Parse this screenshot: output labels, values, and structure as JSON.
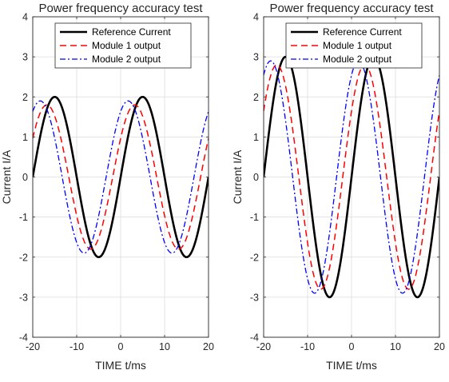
{
  "chart_data": [
    {
      "type": "line",
      "title": "Power frequency accuracy test",
      "xlabel": "TIME t/ms",
      "ylabel": "Current I/A",
      "xlim": [
        -20,
        20
      ],
      "ylim": [
        -4,
        4
      ],
      "xticks": [
        "-20",
        "-10",
        "0",
        "10",
        "20"
      ],
      "yticks": [
        "-4",
        "-3",
        "-2",
        "-1",
        "0",
        "1",
        "2",
        "3",
        "4"
      ],
      "grid": true,
      "legend_position": "top-right",
      "series": [
        {
          "name": "Reference Current",
          "amplitude": 2.0,
          "period_ms": 20,
          "shift_ms": 0.0,
          "color": "#000000",
          "style": "solid"
        },
        {
          "name": "Module 1 output",
          "amplitude": 1.8,
          "period_ms": 20,
          "shift_ms": -1.8,
          "color": "#ff0000",
          "style": "dashed"
        },
        {
          "name": "Module 2 output",
          "amplitude": 1.9,
          "period_ms": 20,
          "shift_ms": -3.3,
          "color": "#0000ff",
          "style": "dashdot"
        }
      ]
    },
    {
      "type": "line",
      "title": "Power frequency accuracy test",
      "xlabel": "TIME t/ms",
      "ylabel": "Current I/A",
      "xlim": [
        -20,
        20
      ],
      "ylim": [
        -4,
        4
      ],
      "xticks": [
        "-20",
        "-10",
        "0",
        "10",
        "20"
      ],
      "yticks": [
        "-4",
        "-3",
        "-2",
        "-1",
        "0",
        "1",
        "2",
        "3",
        "4"
      ],
      "grid": true,
      "legend_position": "top-right",
      "series": [
        {
          "name": "Reference Current",
          "amplitude": 3.0,
          "period_ms": 20,
          "shift_ms": 0.0,
          "color": "#000000",
          "style": "solid"
        },
        {
          "name": "Module 1 output",
          "amplitude": 2.8,
          "period_ms": 20,
          "shift_ms": -2.0,
          "color": "#ff0000",
          "style": "dashed"
        },
        {
          "name": "Module 2 output",
          "amplitude": 2.9,
          "period_ms": 20,
          "shift_ms": -3.4,
          "color": "#0000ff",
          "style": "dashdot"
        }
      ]
    }
  ]
}
